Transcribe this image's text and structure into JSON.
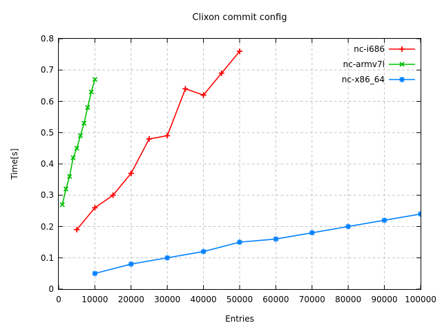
{
  "chart_data": {
    "type": "line",
    "title": "Clixon commit config",
    "xlabel": "Entries",
    "ylabel": "Time[s]",
    "xlim": [
      0,
      100000
    ],
    "ylim": [
      0,
      0.8
    ],
    "grid": true,
    "legend_position": "top-right-inside",
    "background_color": "#ffffff",
    "axis_color": "#000000",
    "grid_color": "#c0c0c0",
    "x_tick_values": [
      0,
      10000,
      20000,
      30000,
      40000,
      50000,
      60000,
      70000,
      80000,
      90000,
      100000
    ],
    "x_tick_labels": [
      "0",
      "10000",
      "20000",
      "30000",
      "40000",
      "50000",
      "60000",
      "70000",
      "80000",
      "90000",
      "100000"
    ],
    "y_tick_values": [
      0,
      0.1,
      0.2,
      0.3,
      0.4,
      0.5,
      0.6,
      0.7,
      0.8
    ],
    "y_tick_labels": [
      "0",
      "0.1",
      "0.2",
      "0.3",
      "0.4",
      "0.5",
      "0.6",
      "0.7",
      "0.8"
    ],
    "series": [
      {
        "name": "nc-i686",
        "color": "#ff0000",
        "marker": "plus",
        "points": [
          [
            5000,
            0.19
          ],
          [
            10000,
            0.26
          ],
          [
            15000,
            0.3
          ],
          [
            20000,
            0.37
          ],
          [
            25000,
            0.48
          ],
          [
            30000,
            0.49
          ],
          [
            35000,
            0.64
          ],
          [
            40000,
            0.62
          ],
          [
            45000,
            0.69
          ],
          [
            50000,
            0.76
          ]
        ]
      },
      {
        "name": "nc-armv7l",
        "color": "#00c000",
        "marker": "cross",
        "points": [
          [
            1000,
            0.27
          ],
          [
            2000,
            0.32
          ],
          [
            3000,
            0.36
          ],
          [
            4000,
            0.42
          ],
          [
            5000,
            0.45
          ],
          [
            6000,
            0.49
          ],
          [
            7000,
            0.53
          ],
          [
            8000,
            0.58
          ],
          [
            9000,
            0.63
          ],
          [
            10000,
            0.67
          ]
        ]
      },
      {
        "name": "nc-x86_64",
        "color": "#0080ff",
        "marker": "star",
        "points": [
          [
            10000,
            0.05
          ],
          [
            20000,
            0.08
          ],
          [
            30000,
            0.1
          ],
          [
            40000,
            0.12
          ],
          [
            50000,
            0.15
          ],
          [
            60000,
            0.16
          ],
          [
            70000,
            0.18
          ],
          [
            80000,
            0.2
          ],
          [
            90000,
            0.22
          ],
          [
            100000,
            0.24
          ]
        ]
      }
    ]
  }
}
